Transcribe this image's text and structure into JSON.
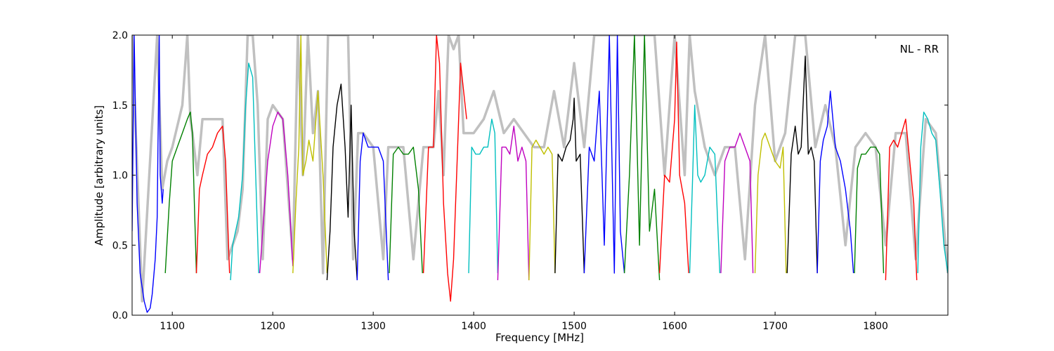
{
  "chart_data": {
    "type": "line",
    "title": "",
    "annotation": "NL - RR",
    "xlabel": "Frequency [MHz]",
    "ylabel": "Amplitude [arbitrary units]",
    "xlim": [
      1060,
      1872
    ],
    "ylim": [
      0,
      2.0
    ],
    "xticks": [
      1100,
      1200,
      1300,
      1400,
      1500,
      1600,
      1700,
      1800
    ],
    "yticks": [
      0.0,
      0.5,
      1.0,
      1.5,
      2.0
    ],
    "xtick_labels": [
      "1100",
      "1200",
      "1300",
      "1400",
      "1500",
      "1600",
      "1700",
      "1800"
    ],
    "ytick_labels": [
      "0.0",
      "0.5",
      "1.0",
      "1.5",
      "2.0"
    ],
    "grid": false,
    "legend": "none",
    "colors": {
      "background": "#c0c0c0",
      "band_cycle": [
        "#0000ff",
        "#008000",
        "#ff0000",
        "#00bfbf",
        "#bf00bf",
        "#bfbf00",
        "#000000"
      ]
    },
    "background_envelope": {
      "color": "#c0c0c0",
      "x": [
        1060,
        1070,
        1085,
        1090,
        1095,
        1100,
        1110,
        1115,
        1118,
        1120,
        1125,
        1130,
        1140,
        1150,
        1155,
        1160,
        1165,
        1170,
        1175,
        1180,
        1185,
        1190,
        1195,
        1200,
        1210,
        1220,
        1225,
        1230,
        1235,
        1240,
        1245,
        1250,
        1255,
        1260,
        1265,
        1270,
        1275,
        1280,
        1285,
        1290,
        1300,
        1310,
        1315,
        1320,
        1330,
        1340,
        1350,
        1360,
        1365,
        1370,
        1375,
        1380,
        1385,
        1390,
        1395,
        1400,
        1410,
        1420,
        1430,
        1440,
        1450,
        1460,
        1470,
        1480,
        1490,
        1500,
        1510,
        1520,
        1530,
        1540,
        1550,
        1560,
        1570,
        1580,
        1590,
        1600,
        1610,
        1615,
        1620,
        1630,
        1640,
        1650,
        1660,
        1670,
        1680,
        1690,
        1700,
        1710,
        1720,
        1730,
        1740,
        1750,
        1760,
        1770,
        1780,
        1790,
        1800,
        1810,
        1820,
        1830,
        1840,
        1850,
        1860,
        1872
      ],
      "y": [
        2.0,
        0.1,
        2.0,
        0.9,
        1.1,
        1.2,
        1.5,
        2.0,
        1.4,
        1.3,
        1.0,
        1.4,
        1.4,
        1.4,
        0.4,
        0.5,
        0.6,
        0.9,
        2.0,
        2.0,
        1.5,
        0.4,
        1.4,
        1.5,
        1.4,
        0.4,
        2.0,
        1.0,
        2.0,
        1.3,
        1.6,
        0.3,
        2.0,
        2.0,
        2.0,
        2.0,
        2.0,
        0.4,
        1.3,
        1.3,
        1.2,
        0.4,
        1.2,
        1.2,
        1.2,
        0.4,
        1.2,
        1.2,
        1.6,
        1.0,
        2.0,
        1.9,
        2.0,
        1.3,
        1.3,
        1.3,
        1.4,
        1.6,
        1.3,
        1.4,
        1.3,
        1.2,
        1.2,
        1.6,
        1.2,
        1.8,
        1.2,
        2.0,
        2.0,
        2.0,
        2.0,
        2.0,
        2.0,
        2.0,
        1.0,
        2.0,
        1.0,
        2.0,
        1.6,
        1.2,
        1.0,
        1.2,
        1.2,
        0.4,
        1.5,
        2.0,
        1.1,
        1.3,
        2.0,
        2.0,
        1.2,
        1.5,
        1.2,
        0.5,
        1.2,
        1.3,
        1.2,
        0.5,
        1.3,
        1.3,
        0.4,
        1.4,
        1.3,
        0.3
      ]
    },
    "series": [
      {
        "color": "#0000ff",
        "x": [
          1060,
          1062,
          1065,
          1068,
          1072,
          1075,
          1078,
          1080,
          1083,
          1085,
          1087,
          1088,
          1090,
          1091
        ],
        "y": [
          0.6,
          2.0,
          0.8,
          0.3,
          0.1,
          0.02,
          0.05,
          0.15,
          0.4,
          0.7,
          2.0,
          1.0,
          0.8,
          0.9
        ]
      },
      {
        "color": "#008000",
        "x": [
          1093,
          1097,
          1100,
          1105,
          1110,
          1115,
          1118,
          1120,
          1122,
          1124
        ],
        "y": [
          0.3,
          0.8,
          1.1,
          1.2,
          1.3,
          1.4,
          1.45,
          1.3,
          0.8,
          0.3
        ]
      },
      {
        "color": "#ff0000",
        "x": [
          1124,
          1127,
          1130,
          1135,
          1140,
          1145,
          1150,
          1153,
          1155,
          1157
        ],
        "y": [
          0.3,
          0.9,
          1.0,
          1.15,
          1.2,
          1.3,
          1.35,
          1.1,
          0.7,
          0.3
        ]
      },
      {
        "color": "#00bfbf",
        "x": [
          1158,
          1160,
          1163,
          1166,
          1170,
          1173,
          1176,
          1180,
          1183,
          1186
        ],
        "y": [
          0.25,
          0.5,
          0.6,
          0.7,
          1.0,
          1.5,
          1.8,
          1.7,
          1.0,
          0.3
        ]
      },
      {
        "color": "#bf00bf",
        "x": [
          1187,
          1190,
          1195,
          1200,
          1205,
          1210,
          1215,
          1220
        ],
        "y": [
          0.3,
          0.6,
          1.1,
          1.35,
          1.45,
          1.4,
          1.0,
          0.35
        ]
      },
      {
        "color": "#bfbf00",
        "x": [
          1220,
          1223,
          1226,
          1228,
          1230,
          1233,
          1236,
          1240,
          1245,
          1250,
          1254
        ],
        "y": [
          0.3,
          0.8,
          1.2,
          2.0,
          1.0,
          1.1,
          1.25,
          1.1,
          1.6,
          1.0,
          0.3
        ]
      },
      {
        "color": "#000000",
        "x": [
          1254,
          1257,
          1260,
          1264,
          1268,
          1272,
          1275,
          1278,
          1281,
          1284
        ],
        "y": [
          0.25,
          0.6,
          1.2,
          1.5,
          1.65,
          1.2,
          0.7,
          1.5,
          0.6,
          0.25
        ]
      },
      {
        "color": "#0000ff",
        "x": [
          1284,
          1287,
          1290,
          1295,
          1300,
          1305,
          1310,
          1315
        ],
        "y": [
          0.25,
          1.1,
          1.3,
          1.2,
          1.2,
          1.2,
          1.1,
          0.25
        ]
      },
      {
        "color": "#008000",
        "x": [
          1316,
          1320,
          1325,
          1330,
          1335,
          1340,
          1345,
          1349
        ],
        "y": [
          0.3,
          1.15,
          1.2,
          1.15,
          1.15,
          1.2,
          0.9,
          0.3
        ]
      },
      {
        "color": "#ff0000",
        "x": [
          1350,
          1355,
          1360,
          1363,
          1366,
          1370,
          1374,
          1377,
          1380,
          1384,
          1387,
          1390,
          1393
        ],
        "y": [
          0.3,
          1.2,
          1.2,
          2.0,
          1.8,
          0.8,
          0.3,
          0.1,
          0.4,
          1.2,
          1.8,
          1.6,
          1.4
        ]
      },
      {
        "color": "#00bfbf",
        "x": [
          1395,
          1398,
          1402,
          1406,
          1410,
          1414,
          1418,
          1421,
          1424
        ],
        "y": [
          0.3,
          1.2,
          1.15,
          1.15,
          1.2,
          1.2,
          1.4,
          1.3,
          0.3
        ]
      },
      {
        "color": "#bf00bf",
        "x": [
          1424,
          1428,
          1432,
          1436,
          1440,
          1444,
          1448,
          1452,
          1455
        ],
        "y": [
          0.25,
          1.2,
          1.2,
          1.15,
          1.35,
          1.1,
          1.2,
          1.1,
          0.25
        ]
      },
      {
        "color": "#bfbf00",
        "x": [
          1455,
          1458,
          1462,
          1466,
          1470,
          1474,
          1478,
          1481
        ],
        "y": [
          0.25,
          1.2,
          1.25,
          1.2,
          1.15,
          1.2,
          1.15,
          0.3
        ]
      },
      {
        "color": "#000000",
        "x": [
          1481,
          1484,
          1488,
          1492,
          1496,
          1499,
          1500,
          1502,
          1506,
          1510
        ],
        "y": [
          0.3,
          1.15,
          1.1,
          1.2,
          1.25,
          1.4,
          1.55,
          1.1,
          1.15,
          0.3
        ]
      },
      {
        "color": "#0000ff",
        "x": [
          1510,
          1515,
          1520,
          1525,
          1530,
          1535,
          1540,
          1543,
          1546,
          1550
        ],
        "y": [
          0.3,
          1.2,
          1.1,
          1.6,
          0.5,
          2.0,
          0.3,
          2.0,
          0.6,
          0.3
        ]
      },
      {
        "color": "#008000",
        "x": [
          1550,
          1555,
          1560,
          1565,
          1570,
          1575,
          1580,
          1585
        ],
        "y": [
          0.3,
          1.0,
          2.0,
          0.5,
          2.0,
          0.6,
          0.9,
          0.25
        ]
      },
      {
        "color": "#ff0000",
        "x": [
          1585,
          1590,
          1595,
          1600,
          1602,
          1605,
          1610,
          1614
        ],
        "y": [
          0.3,
          1.0,
          0.95,
          1.4,
          1.95,
          1.0,
          0.8,
          0.3
        ]
      },
      {
        "color": "#00bfbf",
        "x": [
          1615,
          1618,
          1620,
          1623,
          1626,
          1630,
          1635,
          1640,
          1645
        ],
        "y": [
          0.3,
          1.0,
          1.5,
          1.0,
          0.95,
          1.0,
          1.2,
          1.15,
          0.3
        ]
      },
      {
        "color": "#bf00bf",
        "x": [
          1646,
          1650,
          1655,
          1660,
          1665,
          1670,
          1675,
          1678
        ],
        "y": [
          0.3,
          1.1,
          1.2,
          1.2,
          1.3,
          1.2,
          1.1,
          0.3
        ]
      },
      {
        "color": "#bfbf00",
        "x": [
          1680,
          1683,
          1687,
          1690,
          1695,
          1700,
          1705,
          1708,
          1711
        ],
        "y": [
          0.3,
          1.0,
          1.25,
          1.3,
          1.2,
          1.1,
          1.05,
          1.2,
          0.3
        ]
      },
      {
        "color": "#000000",
        "x": [
          1712,
          1716,
          1720,
          1723,
          1726,
          1730,
          1733,
          1736,
          1739,
          1742
        ],
        "y": [
          0.3,
          1.15,
          1.35,
          1.15,
          1.2,
          1.85,
          1.15,
          1.2,
          1.1,
          0.3
        ]
      },
      {
        "color": "#0000ff",
        "x": [
          1742,
          1745,
          1748,
          1752,
          1755,
          1760,
          1765,
          1770,
          1775,
          1778
        ],
        "y": [
          0.3,
          1.1,
          1.25,
          1.35,
          1.6,
          1.2,
          1.1,
          0.9,
          0.6,
          0.3
        ]
      },
      {
        "color": "#008000",
        "x": [
          1779,
          1782,
          1786,
          1790,
          1795,
          1800,
          1804,
          1808
        ],
        "y": [
          0.3,
          1.05,
          1.15,
          1.15,
          1.2,
          1.2,
          1.15,
          0.3
        ]
      },
      {
        "color": "#ff0000",
        "x": [
          1810,
          1814,
          1818,
          1822,
          1826,
          1830,
          1834,
          1838,
          1841
        ],
        "y": [
          0.25,
          1.2,
          1.25,
          1.2,
          1.3,
          1.4,
          1.1,
          0.8,
          0.25
        ]
      },
      {
        "color": "#00bfbf",
        "x": [
          1842,
          1845,
          1848,
          1852,
          1856,
          1860,
          1864,
          1868,
          1872
        ],
        "y": [
          0.3,
          1.2,
          1.45,
          1.4,
          1.3,
          1.25,
          0.9,
          0.5,
          0.3
        ]
      }
    ]
  }
}
